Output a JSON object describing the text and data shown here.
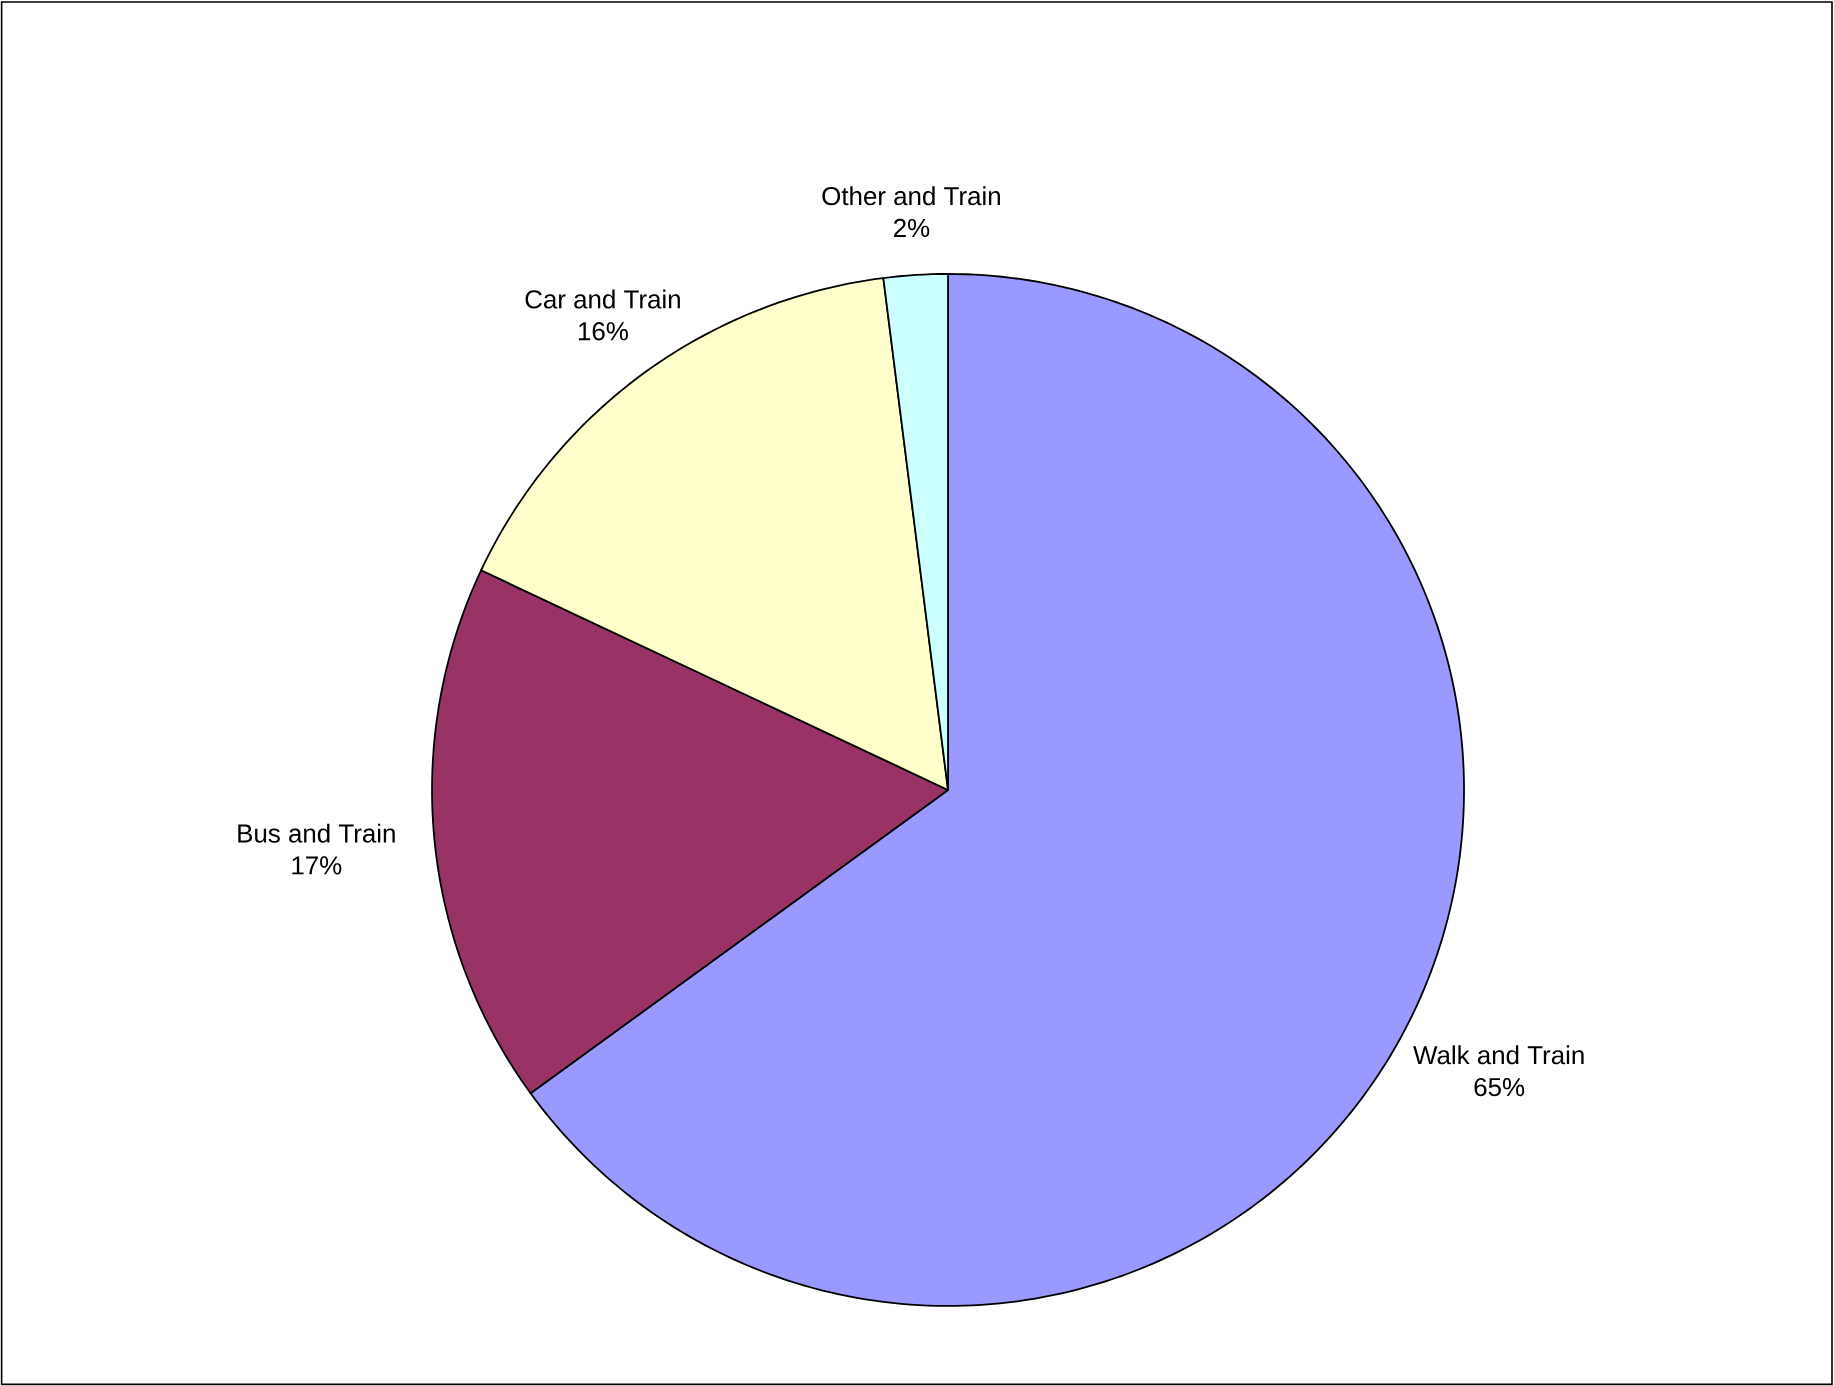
{
  "chart_data": {
    "type": "pie",
    "categories": [
      "Walk and Train",
      "Bus and Train",
      "Car and Train",
      "Other and Train"
    ],
    "values": [
      65,
      17,
      16,
      2
    ],
    "colors": [
      "#9999ff",
      "#993366",
      "#ffffcc",
      "#ccffff"
    ],
    "value_labels": [
      "65%",
      "17%",
      "16%",
      "2%"
    ]
  }
}
